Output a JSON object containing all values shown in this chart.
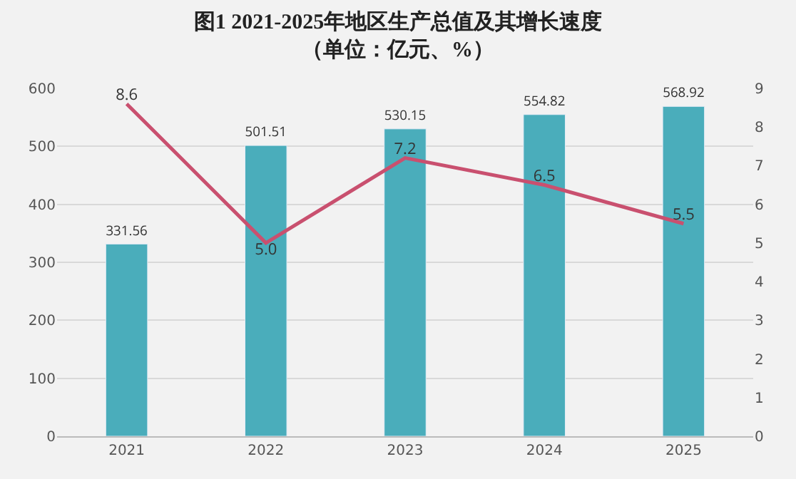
{
  "chart_data": {
    "type": "bar",
    "title": "图1 2021-2025年地区生产总值及其增长速度",
    "subtitle": "（单位：亿元、%）",
    "categories": [
      "2021",
      "2022",
      "2023",
      "2024",
      "2025"
    ],
    "series": [
      {
        "color": "#4aadbb",
        "values": [
          331.56,
          501.51,
          530.15,
          554.82,
          568.92
        ],
        "value_labels": [
          "331.56",
          "501.51",
          "530.15",
          "554.82",
          "568.92"
        ]
      },
      {
        "type": "line",
        "axis": "y2",
        "color": "#c9506f",
        "values": [
          8.6,
          5.0,
          7.2,
          6.5,
          5.5
        ],
        "value_labels": [
          "8.6",
          "5.0",
          "7.2",
          "6.5",
          "5.5"
        ]
      }
    ],
    "ylim": [
      0,
      600
    ],
    "yticks": [
      0,
      100,
      200,
      300,
      400,
      500,
      600
    ],
    "y2lim": [
      0,
      9
    ],
    "y2ticks": [
      0,
      1,
      2,
      3,
      4,
      5,
      6,
      7,
      8,
      9
    ],
    "grid": "y",
    "marker": "none",
    "line_style": "solid"
  }
}
